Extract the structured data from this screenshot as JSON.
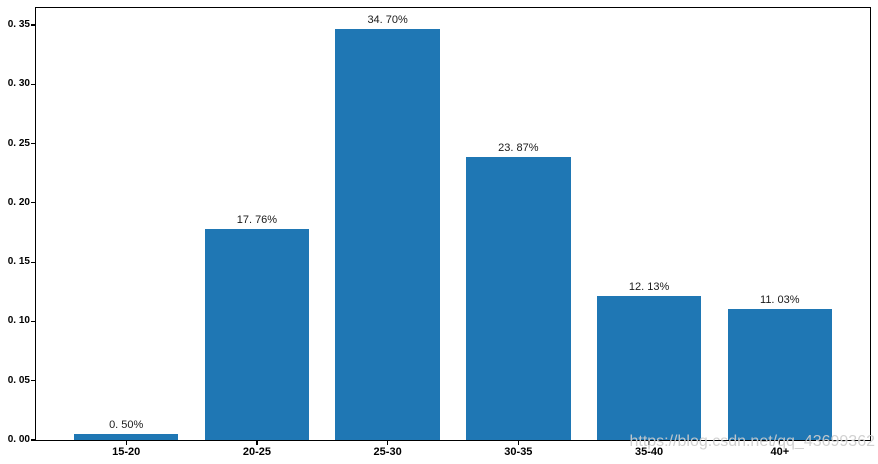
{
  "figure": {
    "background": "#ffffff",
    "watermark": "https://blog.csdn.net/qq_43699362"
  },
  "chart_data": {
    "type": "bar",
    "title": "",
    "xlabel": "",
    "ylabel": "",
    "categories": [
      "15-20",
      "20-25",
      "25-30",
      "30-35",
      "35-40",
      "40+"
    ],
    "values": [
      0.005,
      0.1776,
      0.347,
      0.2387,
      0.1213,
      0.1103
    ],
    "bar_labels": [
      "0. 50%",
      "17. 76%",
      "34. 70%",
      "23. 87%",
      "12. 13%",
      "11. 03%"
    ],
    "bar_color": "#1f77b4",
    "yticks": [
      0.0,
      0.05,
      0.1,
      0.15,
      0.2,
      0.25,
      0.3,
      0.35
    ],
    "ytick_labels": [
      "0. 00",
      "0. 05",
      "0. 10",
      "0. 15",
      "0. 20",
      "0. 25",
      "0. 30",
      "0. 35"
    ],
    "ylim": [
      0,
      0.3644
    ],
    "xlim": [
      -0.69,
      5.69
    ],
    "bar_width": 0.8,
    "grid": false,
    "legend": null,
    "frame": true,
    "spine_color": "#000000",
    "tick_label_color": "#000000"
  }
}
